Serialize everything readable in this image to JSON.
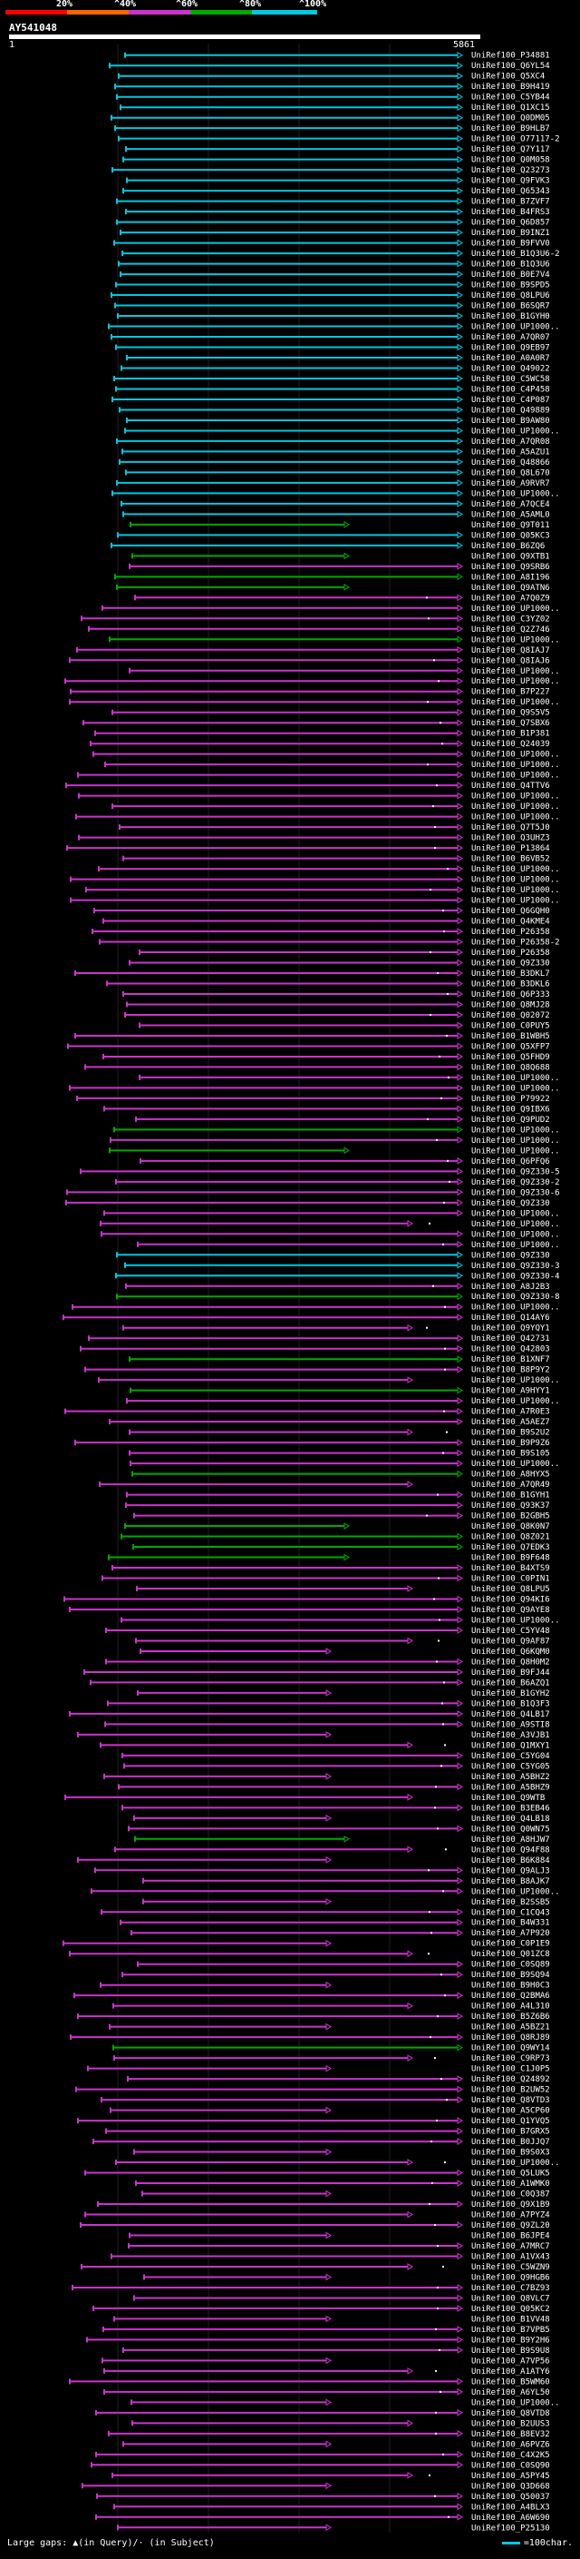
{
  "scale": {
    "labels": [
      "20%",
      "^40%",
      "^60%",
      "^80%",
      "^100%"
    ],
    "colors": [
      "#ff0000",
      "#ff6600",
      "#cc33cc",
      "#00aa00",
      "#00c8e0"
    ]
  },
  "query": {
    "title": "AY541048",
    "start": "1",
    "end": "5861"
  },
  "hits": [
    {
      "id": "UniRef100_P34881",
      "color": "#00c8e0"
    },
    {
      "id": "UniRef100_Q6YL54",
      "color": "#00c8e0"
    },
    {
      "id": "UniRef100_Q5XC4",
      "color": "#00c8e0"
    },
    {
      "id": "UniRef100_B9H419",
      "color": "#00c8e0"
    },
    {
      "id": "UniRef100_C5YB44",
      "color": "#00c8e0"
    },
    {
      "id": "UniRef100_Q1XC15",
      "color": "#00c8e0"
    },
    {
      "id": "UniRef100_Q0DM05",
      "color": "#00c8e0"
    },
    {
      "id": "UniRef100_B9HLB7",
      "color": "#00c8e0"
    },
    {
      "id": "UniRef100_O77117-2",
      "color": "#00c8e0"
    },
    {
      "id": "UniRef100_Q7Y117",
      "color": "#00c8e0"
    },
    {
      "id": "UniRef100_Q0M058",
      "color": "#00c8e0"
    },
    {
      "id": "UniRef100_Q23273",
      "color": "#00c8e0"
    },
    {
      "id": "UniRef100_Q9FVK3",
      "color": "#00c8e0"
    },
    {
      "id": "UniRef100_Q65343",
      "color": "#00c8e0"
    },
    {
      "id": "UniRef100_B7ZVF7",
      "color": "#00c8e0"
    },
    {
      "id": "UniRef100_B4FRS3",
      "color": "#00c8e0"
    },
    {
      "id": "UniRef100_Q6D857",
      "color": "#00c8e0"
    },
    {
      "id": "UniRef100_B9INZ1",
      "color": "#00c8e0"
    },
    {
      "id": "UniRef100_B9FVV0",
      "color": "#00c8e0"
    },
    {
      "id": "UniRef100_B1Q3U6-2",
      "color": "#00c8e0"
    },
    {
      "id": "UniRef100_B1Q3U6",
      "color": "#00c8e0"
    },
    {
      "id": "UniRef100_B0E7V4",
      "color": "#00c8e0"
    },
    {
      "id": "UniRef100_B9SPD5",
      "color": "#00c8e0"
    },
    {
      "id": "UniRef100_Q8LPU6",
      "color": "#00c8e0"
    },
    {
      "id": "UniRef100_B6SQR7",
      "color": "#00c8e0"
    },
    {
      "id": "UniRef100_B1GYH0",
      "color": "#00c8e0"
    },
    {
      "id": "UniRef100_UP1000..",
      "color": "#00c8e0"
    },
    {
      "id": "UniRef100_A7QR07",
      "color": "#00c8e0"
    },
    {
      "id": "UniRef100_Q9EB97",
      "color": "#00c8e0"
    },
    {
      "id": "UniRef100_A0A0R7",
      "color": "#00c8e0"
    },
    {
      "id": "UniRef100_Q49022",
      "color": "#00c8e0"
    },
    {
      "id": "UniRef100_C5WC58",
      "color": "#00c8e0"
    },
    {
      "id": "UniRef100_C4P458",
      "color": "#00c8e0"
    },
    {
      "id": "UniRef100_C4P087",
      "color": "#00c8e0"
    },
    {
      "id": "UniRef100_Q49889",
      "color": "#00c8e0"
    },
    {
      "id": "UniRef100_B9AW80",
      "color": "#00c8e0"
    },
    {
      "id": "UniRef100_UP1000..",
      "color": "#00c8e0"
    },
    {
      "id": "UniRef100_A7QR08",
      "color": "#00c8e0"
    },
    {
      "id": "UniRef100_A5AZU1",
      "color": "#00c8e0"
    },
    {
      "id": "UniRef100_Q48866",
      "color": "#00c8e0"
    },
    {
      "id": "UniRef100_Q8L670",
      "color": "#00c8e0"
    },
    {
      "id": "UniRef100_A9RVR7",
      "color": "#00c8e0"
    },
    {
      "id": "UniRef100_UP1000..",
      "color": "#00c8e0"
    },
    {
      "id": "UniRef100_A7QCE4",
      "color": "#00c8e0"
    },
    {
      "id": "UniRef100_A5AML0",
      "color": "#00c8e0"
    },
    {
      "id": "UniRef100_Q9T011",
      "color": "#00aa00"
    },
    {
      "id": "UniRef100_Q05KC3",
      "color": "#00c8e0"
    },
    {
      "id": "UniRef100_B6ZQ6",
      "color": "#00c8e0"
    },
    {
      "id": "UniRef100_Q9XTB1",
      "color": "#00aa00"
    },
    {
      "id": "UniRef100_Q9SRB6",
      "color": "#cc33cc"
    },
    {
      "id": "UniRef100_A8I196",
      "color": "#00aa00"
    },
    {
      "id": "UniRef100_Q9ATN6",
      "color": "#00aa00"
    },
    {
      "id": "UniRef100_A7Q0Z9",
      "color": "#cc33cc"
    },
    {
      "id": "UniRef100_UP1000..",
      "color": "#cc33cc"
    },
    {
      "id": "UniRef100_C3YZ02",
      "color": "#cc33cc"
    },
    {
      "id": "UniRef100_Q2Z746",
      "color": "#cc33cc"
    },
    {
      "id": "UniRef100_UP1000..",
      "color": "#00aa00"
    },
    {
      "id": "UniRef100_Q8IAJ7",
      "color": "#cc33cc"
    },
    {
      "id": "UniRef100_Q8IAJ6",
      "color": "#cc33cc"
    },
    {
      "id": "UniRef100_UP1000..",
      "color": "#cc33cc"
    },
    {
      "id": "UniRef100_UP1000..",
      "color": "#cc33cc"
    },
    {
      "id": "UniRef100_B7P227",
      "color": "#cc33cc"
    },
    {
      "id": "UniRef100_UP1000..",
      "color": "#cc33cc"
    },
    {
      "id": "UniRef100_Q9S5V5",
      "color": "#cc33cc"
    },
    {
      "id": "UniRef100_Q7SBX6",
      "color": "#cc33cc"
    },
    {
      "id": "UniRef100_B1P381",
      "color": "#cc33cc"
    },
    {
      "id": "UniRef100_Q24039",
      "color": "#cc33cc"
    },
    {
      "id": "UniRef100_UP1000..",
      "color": "#cc33cc"
    },
    {
      "id": "UniRef100_UP1000..",
      "color": "#cc33cc"
    },
    {
      "id": "UniRef100_UP1000..",
      "color": "#cc33cc"
    },
    {
      "id": "UniRef100_Q4TTV6",
      "color": "#cc33cc"
    },
    {
      "id": "UniRef100_UP1000..",
      "color": "#cc33cc"
    },
    {
      "id": "UniRef100_UP1000..",
      "color": "#cc33cc"
    },
    {
      "id": "UniRef100_UP1000..",
      "color": "#cc33cc"
    },
    {
      "id": "UniRef100_Q7T5J0",
      "color": "#cc33cc"
    },
    {
      "id": "UniRef100_Q3UHZ3",
      "color": "#cc33cc"
    },
    {
      "id": "UniRef100_P13864",
      "color": "#cc33cc"
    },
    {
      "id": "UniRef100_B6VB52",
      "color": "#cc33cc"
    },
    {
      "id": "UniRef100_UP1000..",
      "color": "#cc33cc"
    },
    {
      "id": "UniRef100_UP1000..",
      "color": "#cc33cc"
    },
    {
      "id": "UniRef100_UP1000..",
      "color": "#cc33cc"
    },
    {
      "id": "UniRef100_UP1000..",
      "color": "#cc33cc"
    },
    {
      "id": "UniRef100_Q6GQH0",
      "color": "#cc33cc"
    },
    {
      "id": "UniRef100_Q4KME4",
      "color": "#cc33cc"
    },
    {
      "id": "UniRef100_P26358",
      "color": "#cc33cc"
    },
    {
      "id": "UniRef100_P26358-2",
      "color": "#cc33cc"
    },
    {
      "id": "UniRef100_P26358",
      "color": "#cc33cc"
    },
    {
      "id": "UniRef100_Q9Z330",
      "color": "#cc33cc"
    },
    {
      "id": "UniRef100_B3DKL7",
      "color": "#cc33cc"
    },
    {
      "id": "UniRef100_B3DKL6",
      "color": "#cc33cc"
    },
    {
      "id": "UniRef100_Q6P333",
      "color": "#cc33cc"
    },
    {
      "id": "UniRef100_Q8MJ28",
      "color": "#cc33cc"
    },
    {
      "id": "UniRef100_Q02072",
      "color": "#cc33cc"
    },
    {
      "id": "UniRef100_C0PUY5",
      "color": "#cc33cc"
    },
    {
      "id": "UniRef100_B1WBH5",
      "color": "#cc33cc"
    },
    {
      "id": "UniRef100_Q5XFP7",
      "color": "#cc33cc"
    },
    {
      "id": "UniRef100_Q5FHD9",
      "color": "#cc33cc"
    },
    {
      "id": "UniRef100_Q8Q688",
      "color": "#cc33cc"
    },
    {
      "id": "UniRef100_UP1000..",
      "color": "#cc33cc"
    },
    {
      "id": "UniRef100_UP1000..",
      "color": "#cc33cc"
    },
    {
      "id": "UniRef100_P79922",
      "color": "#cc33cc"
    },
    {
      "id": "UniRef100_Q9IBX6",
      "color": "#cc33cc"
    },
    {
      "id": "UniRef100_Q9PUD2",
      "color": "#cc33cc"
    },
    {
      "id": "UniRef100_UP1000..",
      "color": "#00aa00"
    },
    {
      "id": "UniRef100_UP1000..",
      "color": "#cc33cc"
    },
    {
      "id": "UniRef100_UP1000..",
      "color": "#00aa00"
    },
    {
      "id": "UniRef100_Q6PFQ6",
      "color": "#cc33cc"
    },
    {
      "id": "UniRef100_Q9Z330-5",
      "color": "#cc33cc"
    },
    {
      "id": "UniRef100_Q9Z330-2",
      "color": "#cc33cc"
    },
    {
      "id": "UniRef100_Q9Z330-6",
      "color": "#cc33cc"
    },
    {
      "id": "UniRef100_Q9Z330",
      "color": "#cc33cc"
    },
    {
      "id": "UniRef100_UP1000..",
      "color": "#cc33cc"
    },
    {
      "id": "UniRef100_UP1000..",
      "color": "#cc33cc"
    },
    {
      "id": "UniRef100_UP1000..",
      "color": "#cc33cc"
    },
    {
      "id": "UniRef100_UP1000..",
      "color": "#cc33cc"
    },
    {
      "id": "UniRef100_Q9Z330",
      "color": "#00c8e0"
    },
    {
      "id": "UniRef100_Q9Z330-3",
      "color": "#00c8e0"
    },
    {
      "id": "UniRef100_Q9Z330-4",
      "color": "#00c8e0"
    },
    {
      "id": "UniRef100_A8J2B3",
      "color": "#cc33cc"
    },
    {
      "id": "UniRef100_Q9Z330-8",
      "color": "#00aa00"
    },
    {
      "id": "UniRef100_UP1000..",
      "color": "#cc33cc"
    },
    {
      "id": "UniRef100_Q14AY6",
      "color": "#cc33cc"
    },
    {
      "id": "UniRef100_Q9YQY1",
      "color": "#cc33cc"
    },
    {
      "id": "UniRef100_Q42731",
      "color": "#cc33cc"
    },
    {
      "id": "UniRef100_Q42803",
      "color": "#cc33cc"
    },
    {
      "id": "UniRef100_B1XNF7",
      "color": "#00aa00"
    },
    {
      "id": "UniRef100_B8P9Y2",
      "color": "#cc33cc"
    },
    {
      "id": "UniRef100_UP1000..",
      "color": "#cc33cc"
    },
    {
      "id": "UniRef100_A9HYY1",
      "color": "#00aa00"
    },
    {
      "id": "UniRef100_UP1000..",
      "color": "#cc33cc"
    },
    {
      "id": "UniRef100_A7R0E3",
      "color": "#cc33cc"
    },
    {
      "id": "UniRef100_A5AEZ7",
      "color": "#cc33cc"
    },
    {
      "id": "UniRef100_B9S2U2",
      "color": "#cc33cc"
    },
    {
      "id": "UniRef100_B9P9Z6",
      "color": "#cc33cc"
    },
    {
      "id": "UniRef100_B9S105",
      "color": "#cc33cc"
    },
    {
      "id": "UniRef100_UP1000..",
      "color": "#cc33cc"
    },
    {
      "id": "UniRef100_A8HYX5",
      "color": "#00aa00"
    },
    {
      "id": "UniRef100_A7QR49",
      "color": "#cc33cc"
    },
    {
      "id": "UniRef100_B1GYH1",
      "color": "#cc33cc"
    },
    {
      "id": "UniRef100_Q93K37",
      "color": "#cc33cc"
    },
    {
      "id": "UniRef100_B2GBH5",
      "color": "#cc33cc"
    },
    {
      "id": "UniRef100_Q8K0N7",
      "color": "#00aa00"
    },
    {
      "id": "UniRef100_Q8Z021",
      "color": "#00aa00"
    },
    {
      "id": "UniRef100_Q7EDK3",
      "color": "#00aa00"
    },
    {
      "id": "UniRef100_B9F648",
      "color": "#00aa00"
    },
    {
      "id": "UniRef100_B4XTS9",
      "color": "#cc33cc"
    },
    {
      "id": "UniRef100_C0PIN1",
      "color": "#cc33cc"
    },
    {
      "id": "UniRef100_Q8LPU5",
      "color": "#cc33cc"
    },
    {
      "id": "UniRef100_Q94KI6",
      "color": "#cc33cc"
    },
    {
      "id": "UniRef100_Q9AYE8",
      "color": "#cc33cc"
    },
    {
      "id": "UniRef100_UP1000..",
      "color": "#cc33cc"
    },
    {
      "id": "UniRef100_C5YV48",
      "color": "#cc33cc"
    },
    {
      "id": "UniRef100_Q9AF87",
      "color": "#cc33cc"
    },
    {
      "id": "UniRef100_Q6KQM0",
      "color": "#cc33cc"
    },
    {
      "id": "UniRef100_Q8H0M2",
      "color": "#cc33cc"
    },
    {
      "id": "UniRef100_B9FJ44",
      "color": "#cc33cc"
    },
    {
      "id": "UniRef100_B6AZQ1",
      "color": "#cc33cc"
    },
    {
      "id": "UniRef100_B1GYH2",
      "color": "#cc33cc"
    },
    {
      "id": "UniRef100_B1Q3F3",
      "color": "#cc33cc"
    },
    {
      "id": "UniRef100_Q4LB17",
      "color": "#cc33cc"
    },
    {
      "id": "UniRef100_A9STI8",
      "color": "#cc33cc"
    },
    {
      "id": "UniRef100_A3VJB1",
      "color": "#cc33cc"
    },
    {
      "id": "UniRef100_Q1MXY1",
      "color": "#cc33cc"
    },
    {
      "id": "UniRef100_C5YG04",
      "color": "#cc33cc"
    },
    {
      "id": "UniRef100_C5YG05",
      "color": "#cc33cc"
    },
    {
      "id": "UniRef100_A5BHZ2",
      "color": "#cc33cc"
    },
    {
      "id": "UniRef100_A5BHZ9",
      "color": "#cc33cc"
    },
    {
      "id": "UniRef100_Q9WTB",
      "color": "#cc33cc"
    },
    {
      "id": "UniRef100_B3EB46",
      "color": "#cc33cc"
    },
    {
      "id": "UniRef100_Q4LB18",
      "color": "#cc33cc"
    },
    {
      "id": "UniRef100_Q0WN75",
      "color": "#cc33cc"
    },
    {
      "id": "UniRef100_A8HJW7",
      "color": "#00aa00"
    },
    {
      "id": "UniRef100_Q94F88",
      "color": "#cc33cc"
    },
    {
      "id": "UniRef100_B6K884",
      "color": "#cc33cc"
    },
    {
      "id": "UniRef100_Q9ALJ3",
      "color": "#cc33cc"
    },
    {
      "id": "UniRef100_B8AJK7",
      "color": "#cc33cc"
    },
    {
      "id": "UniRef100_UP1000..",
      "color": "#cc33cc"
    },
    {
      "id": "UniRef100_B2SSB5",
      "color": "#cc33cc"
    },
    {
      "id": "UniRef100_C1CQ43",
      "color": "#cc33cc"
    },
    {
      "id": "UniRef100_B4W331",
      "color": "#cc33cc"
    },
    {
      "id": "UniRef100_A7P920",
      "color": "#cc33cc"
    },
    {
      "id": "UniRef100_C0P1E9",
      "color": "#cc33cc"
    },
    {
      "id": "UniRef100_Q01ZC8",
      "color": "#cc33cc"
    },
    {
      "id": "UniRef100_C0SQ89",
      "color": "#cc33cc"
    },
    {
      "id": "UniRef100_B9SQ94",
      "color": "#cc33cc"
    },
    {
      "id": "UniRef100_B9H0C3",
      "color": "#cc33cc"
    },
    {
      "id": "UniRef100_Q2BMA6",
      "color": "#cc33cc"
    },
    {
      "id": "UniRef100_A4L310",
      "color": "#cc33cc"
    },
    {
      "id": "UniRef100_B5Z6B6",
      "color": "#cc33cc"
    },
    {
      "id": "UniRef100_A5BZ21",
      "color": "#cc33cc"
    },
    {
      "id": "UniRef100_Q8RJ89",
      "color": "#cc33cc"
    },
    {
      "id": "UniRef100_Q9WY14",
      "color": "#00aa00"
    },
    {
      "id": "UniRef100_C9RP73",
      "color": "#cc33cc"
    },
    {
      "id": "UniRef100_C1J0P5",
      "color": "#cc33cc"
    },
    {
      "id": "UniRef100_Q24892",
      "color": "#cc33cc"
    },
    {
      "id": "UniRef100_B2UW52",
      "color": "#cc33cc"
    },
    {
      "id": "UniRef100_Q8VTD3",
      "color": "#cc33cc"
    },
    {
      "id": "UniRef100_A5CP60",
      "color": "#cc33cc"
    },
    {
      "id": "UniRef100_Q1YVQ5",
      "color": "#cc33cc"
    },
    {
      "id": "UniRef100_B7GRX5",
      "color": "#cc33cc"
    },
    {
      "id": "UniRef100_B0JJQ7",
      "color": "#cc33cc"
    },
    {
      "id": "UniRef100_B9S0X3",
      "color": "#cc33cc"
    },
    {
      "id": "UniRef100_UP1000..",
      "color": "#cc33cc"
    },
    {
      "id": "UniRef100_Q5LUK5",
      "color": "#cc33cc"
    },
    {
      "id": "UniRef100_A1WMK0",
      "color": "#cc33cc"
    },
    {
      "id": "UniRef100_C0Q387",
      "color": "#cc33cc"
    },
    {
      "id": "UniRef100_Q9X1B9",
      "color": "#cc33cc"
    },
    {
      "id": "UniRef100_A7PYZ4",
      "color": "#cc33cc"
    },
    {
      "id": "UniRef100_Q9ZL20",
      "color": "#cc33cc"
    },
    {
      "id": "UniRef100_B6JPE4",
      "color": "#cc33cc"
    },
    {
      "id": "UniRef100_A7MRC7",
      "color": "#cc33cc"
    },
    {
      "id": "UniRef100_A1VX43",
      "color": "#cc33cc"
    },
    {
      "id": "UniRef100_C5WZN9",
      "color": "#cc33cc"
    },
    {
      "id": "UniRef100_Q9HGB6",
      "color": "#cc33cc"
    },
    {
      "id": "UniRef100_C7BZ93",
      "color": "#cc33cc"
    },
    {
      "id": "UniRef100_Q8VLC7",
      "color": "#cc33cc"
    },
    {
      "id": "UniRef100_Q05KC2",
      "color": "#cc33cc"
    },
    {
      "id": "UniRef100_B1VV48",
      "color": "#cc33cc"
    },
    {
      "id": "UniRef100_B7VPB5",
      "color": "#cc33cc"
    },
    {
      "id": "UniRef100_B9Y2H6",
      "color": "#cc33cc"
    },
    {
      "id": "UniRef100_B9S9U8",
      "color": "#cc33cc"
    },
    {
      "id": "UniRef100_A7VP56",
      "color": "#cc33cc"
    },
    {
      "id": "UniRef100_A1ATY6",
      "color": "#cc33cc"
    },
    {
      "id": "UniRef100_B5WM60",
      "color": "#cc33cc"
    },
    {
      "id": "UniRef100_A6YL50",
      "color": "#cc33cc"
    },
    {
      "id": "UniRef100_UP1000..",
      "color": "#cc33cc"
    },
    {
      "id": "UniRef100_Q8VTD8",
      "color": "#cc33cc"
    },
    {
      "id": "UniRef100_B2UUS3",
      "color": "#cc33cc"
    },
    {
      "id": "UniRef100_B8EV32",
      "color": "#cc33cc"
    },
    {
      "id": "UniRef100_A6PVZ6",
      "color": "#cc33cc"
    },
    {
      "id": "UniRef100_C4X2K5",
      "color": "#cc33cc"
    },
    {
      "id": "UniRef100_C0SQ90",
      "color": "#cc33cc"
    },
    {
      "id": "UniRef100_A5PY45",
      "color": "#cc33cc"
    },
    {
      "id": "UniRef100_Q3D668",
      "color": "#cc33cc"
    },
    {
      "id": "UniRef100_Q50037",
      "color": "#cc33cc"
    },
    {
      "id": "UniRef100_A4BLX3",
      "color": "#cc33cc"
    },
    {
      "id": "UniRef100_A6W690",
      "color": "#cc33cc"
    },
    {
      "id": "UniRef100_P25130",
      "color": "#cc33cc"
    }
  ],
  "legend": {
    "left": "Large gaps: ▲(in Query)/· (in Subject)",
    "right": "=100char."
  }
}
